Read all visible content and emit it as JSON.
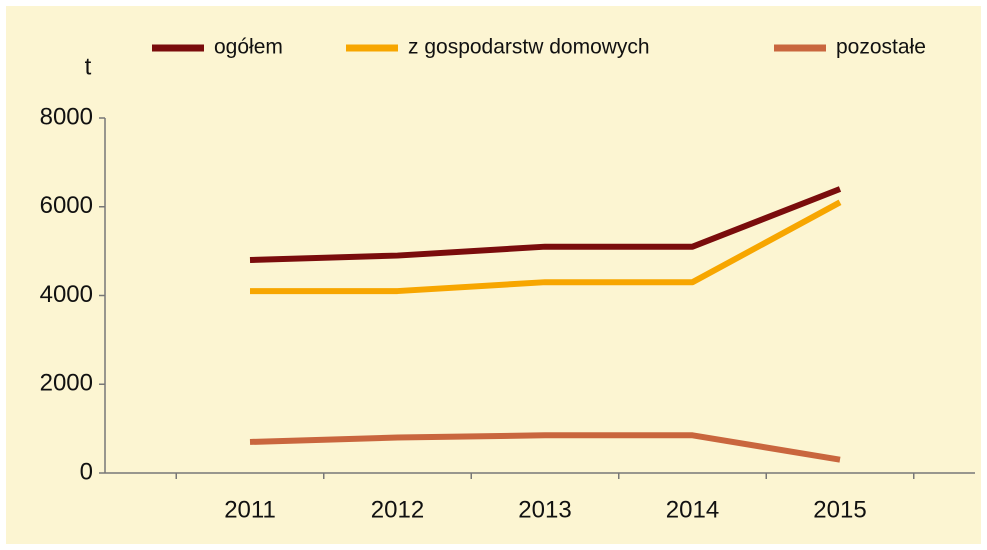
{
  "chart_data": {
    "type": "line",
    "y_label": "t",
    "categories": [
      "2011",
      "2012",
      "2013",
      "2014",
      "2015"
    ],
    "series": [
      {
        "name": "ogółem",
        "color": "#7a0c0c",
        "values": [
          4800,
          4900,
          5100,
          5100,
          6400
        ]
      },
      {
        "name": "z gospodarstw domowych",
        "color": "#f7a600",
        "values": [
          4100,
          4100,
          4300,
          4300,
          6100
        ]
      },
      {
        "name": "pozostałe",
        "color": "#c9663e",
        "values": [
          700,
          800,
          850,
          850,
          300
        ]
      }
    ],
    "ylim": [
      0,
      8000
    ],
    "yticks": [
      0,
      2000,
      4000,
      6000,
      8000
    ],
    "grid": false,
    "legend": "top"
  }
}
